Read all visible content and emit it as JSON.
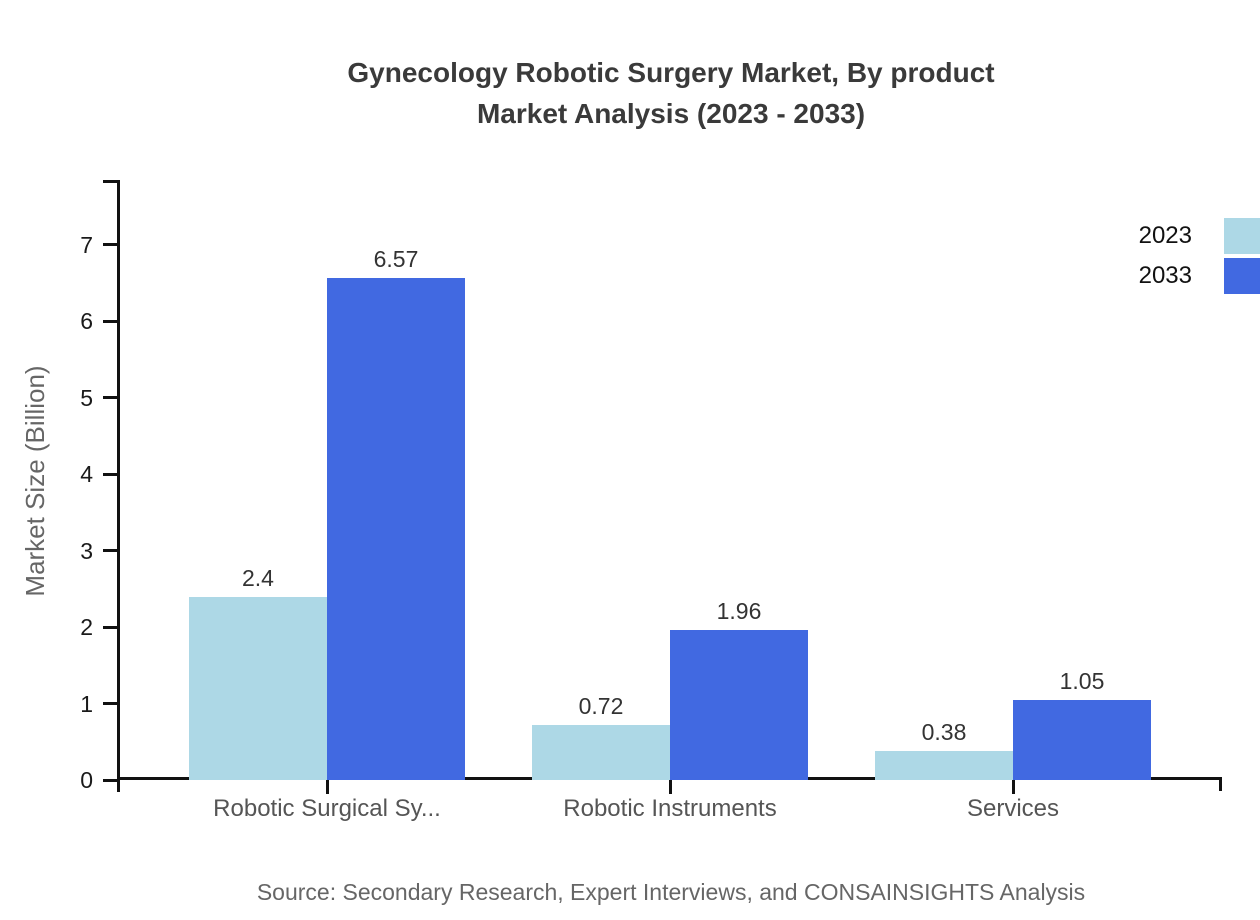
{
  "title": {
    "line1": "Gynecology Robotic Surgery Market, By product",
    "line2": "Market Analysis (2023 - 2033)"
  },
  "source": "Source: Secondary Research, Expert Interviews, and CONSAINSIGHTS Analysis",
  "colors": {
    "series_2023": "#ADD8E6",
    "series_2033": "#4169E1",
    "axis": "#111111",
    "title_text": "#3A3A3A",
    "muted_text": "#666666"
  },
  "chart_data": {
    "type": "bar",
    "title": "Gynecology Robotic Surgery Market, By product Market Analysis (2023 - 2033)",
    "categories": [
      "Robotic Surgical Sy...",
      "Robotic Instruments",
      "Services"
    ],
    "series": [
      {
        "name": "2023",
        "color": "#ADD8E6",
        "values": [
          2.4,
          0.72,
          0.38
        ]
      },
      {
        "name": "2033",
        "color": "#4169E1",
        "values": [
          6.57,
          1.96,
          1.05
        ]
      }
    ],
    "xlabel": "",
    "ylabel": "Market Size (Billion)",
    "ylim": [
      0,
      7.85
    ],
    "yticks": [
      0,
      1,
      2,
      3,
      4,
      5,
      6,
      7
    ],
    "grid": false,
    "legend_position": "top-right",
    "value_labels": true
  }
}
